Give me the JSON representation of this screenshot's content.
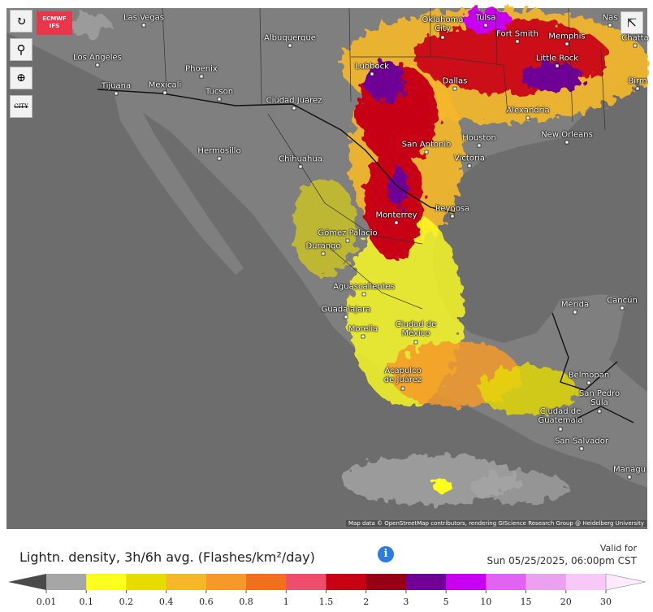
{
  "toolbar": {
    "badge_top": "ECMWF",
    "badge_bottom": "IFS",
    "city_button": "CITY"
  },
  "cities": [
    "Las Vegas",
    "Albuquerque",
    "Oklahoma City",
    "Tulsa",
    "Fort Smith",
    "Memphis",
    "Nas",
    "Chatta",
    "Los Angeles",
    "Phoenix",
    "Tijuana",
    "Mexicali",
    "Tucson",
    "Lubbock",
    "Little Rock",
    "Birm",
    "Dallas",
    "Ciudad Juárez",
    "Alexandria",
    "Houston",
    "New Orleans",
    "San Antonio",
    "Victoria",
    "Hermosillo",
    "Chihuahua",
    "Monterrey",
    "Reynosa",
    "Gómez Palacio",
    "Durango",
    "Aguascalientes",
    "Mérida",
    "Cancún",
    "Guadalajara",
    "Morelia",
    "Ciudad de México",
    "Acapulco de Juárez",
    "Belmopan",
    "San Pedro Sula",
    "Ciudad de Guatemala",
    "San Salvador",
    "Managu"
  ],
  "attribution": "Map data © OpenStreetMap contributors, rendering GIScience Research Group @ Heidelberg University",
  "legend": {
    "title": "Lightn. density, 3h/6h avg. (Flashes/km²/day)",
    "valid_label": "Valid for",
    "valid_time": "Sun 05/25/2025, 06:00pm CST",
    "ticks": [
      0.01,
      0.1,
      0.2,
      0.4,
      0.6,
      0.8,
      1,
      1.5,
      2,
      3,
      5,
      10,
      15,
      20,
      30
    ],
    "under_color": "#4a4a4a",
    "colors": [
      "#a6a6a6",
      "#ffff1e",
      "#e6dc00",
      "#f5b82a",
      "#f59a2a",
      "#f0701e",
      "#f04c6c",
      "#c80014",
      "#960014",
      "#6e0096",
      "#c800f0",
      "#e064f0",
      "#eca0f0",
      "#f8c8f8"
    ],
    "over_color": "#ffeaff"
  }
}
